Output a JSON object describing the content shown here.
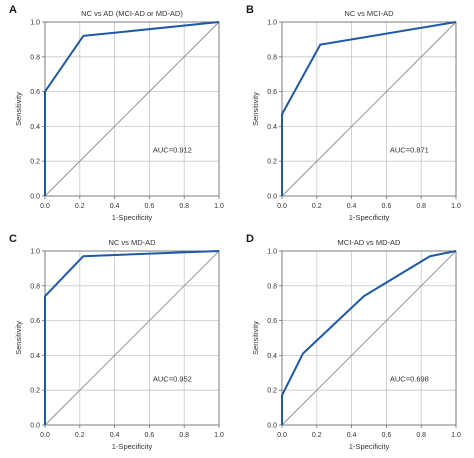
{
  "panel_labels": [
    "A",
    "B",
    "C",
    "D"
  ],
  "colors": {
    "roc_line": "#1f5aa6",
    "diagonal": "#8c8c8c",
    "grid": "#c8c8c8",
    "axis": "#6e6e6e",
    "text": "#333333"
  },
  "chart_data": [
    {
      "type": "line",
      "title": "NC vs AD (MCI-AD or MD-AD)",
      "xlabel": "1-Specificity",
      "ylabel": "Sensitivity",
      "xlim": [
        0,
        1
      ],
      "ylim": [
        0,
        1
      ],
      "xticks": [
        "0.0",
        "0.2",
        "0.4",
        "0.6",
        "0.8",
        "1.0"
      ],
      "yticks": [
        "0.0",
        "0.2",
        "0.4",
        "0.6",
        "0.8",
        "1.0"
      ],
      "grid": true,
      "annotation": "AUC=0.912",
      "series": [
        {
          "x": [
            0,
            0,
            0.22,
            1.0
          ],
          "y": [
            0,
            0.6,
            0.92,
            1.0
          ]
        },
        {
          "x": [
            0,
            1
          ],
          "y": [
            0,
            1
          ]
        }
      ]
    },
    {
      "type": "line",
      "title": "NC vs MCI-AD",
      "xlabel": "1-Specificity",
      "ylabel": "Sensitivity",
      "xlim": [
        0,
        1
      ],
      "ylim": [
        0,
        1
      ],
      "xticks": [
        "0.0",
        "0.2",
        "0.4",
        "0.6",
        "0.8",
        "1.0"
      ],
      "yticks": [
        "0.0",
        "0.2",
        "0.4",
        "0.6",
        "0.8",
        "1.0"
      ],
      "grid": true,
      "annotation": "AUC=0.871",
      "series": [
        {
          "x": [
            0,
            0,
            0.22,
            1.0
          ],
          "y": [
            0,
            0.47,
            0.87,
            1.0
          ]
        },
        {
          "x": [
            0,
            1
          ],
          "y": [
            0,
            1
          ]
        }
      ]
    },
    {
      "type": "line",
      "title": "NC vs MD-AD",
      "xlabel": "1-Specificity",
      "ylabel": "Sensitivity",
      "xlim": [
        0,
        1
      ],
      "ylim": [
        0,
        1
      ],
      "xticks": [
        "0.0",
        "0.2",
        "0.4",
        "0.6",
        "0.8",
        "1.0"
      ],
      "yticks": [
        "0.0",
        "0.2",
        "0.4",
        "0.6",
        "0.8",
        "1.0"
      ],
      "grid": true,
      "annotation": "AUC=0.952",
      "series": [
        {
          "x": [
            0,
            0,
            0.22,
            1.0
          ],
          "y": [
            0,
            0.74,
            0.97,
            1.0
          ]
        },
        {
          "x": [
            0,
            1
          ],
          "y": [
            0,
            1
          ]
        }
      ]
    },
    {
      "type": "line",
      "title": "MCI-AD vs MD-AD",
      "xlabel": "1-Specificity",
      "ylabel": "Sensitivity",
      "xlim": [
        0,
        1
      ],
      "ylim": [
        0,
        1
      ],
      "xticks": [
        "0.0",
        "0.2",
        "0.4",
        "0.6",
        "0.8",
        "1.0"
      ],
      "yticks": [
        "0.0",
        "0.2",
        "0.4",
        "0.6",
        "0.8",
        "1.0"
      ],
      "grid": true,
      "annotation": "AUC=0.698",
      "series": [
        {
          "x": [
            0,
            0,
            0.12,
            0.47,
            0.85,
            1.0
          ],
          "y": [
            0,
            0.17,
            0.41,
            0.74,
            0.97,
            1.0
          ]
        },
        {
          "x": [
            0,
            1
          ],
          "y": [
            0,
            1
          ]
        }
      ]
    }
  ]
}
